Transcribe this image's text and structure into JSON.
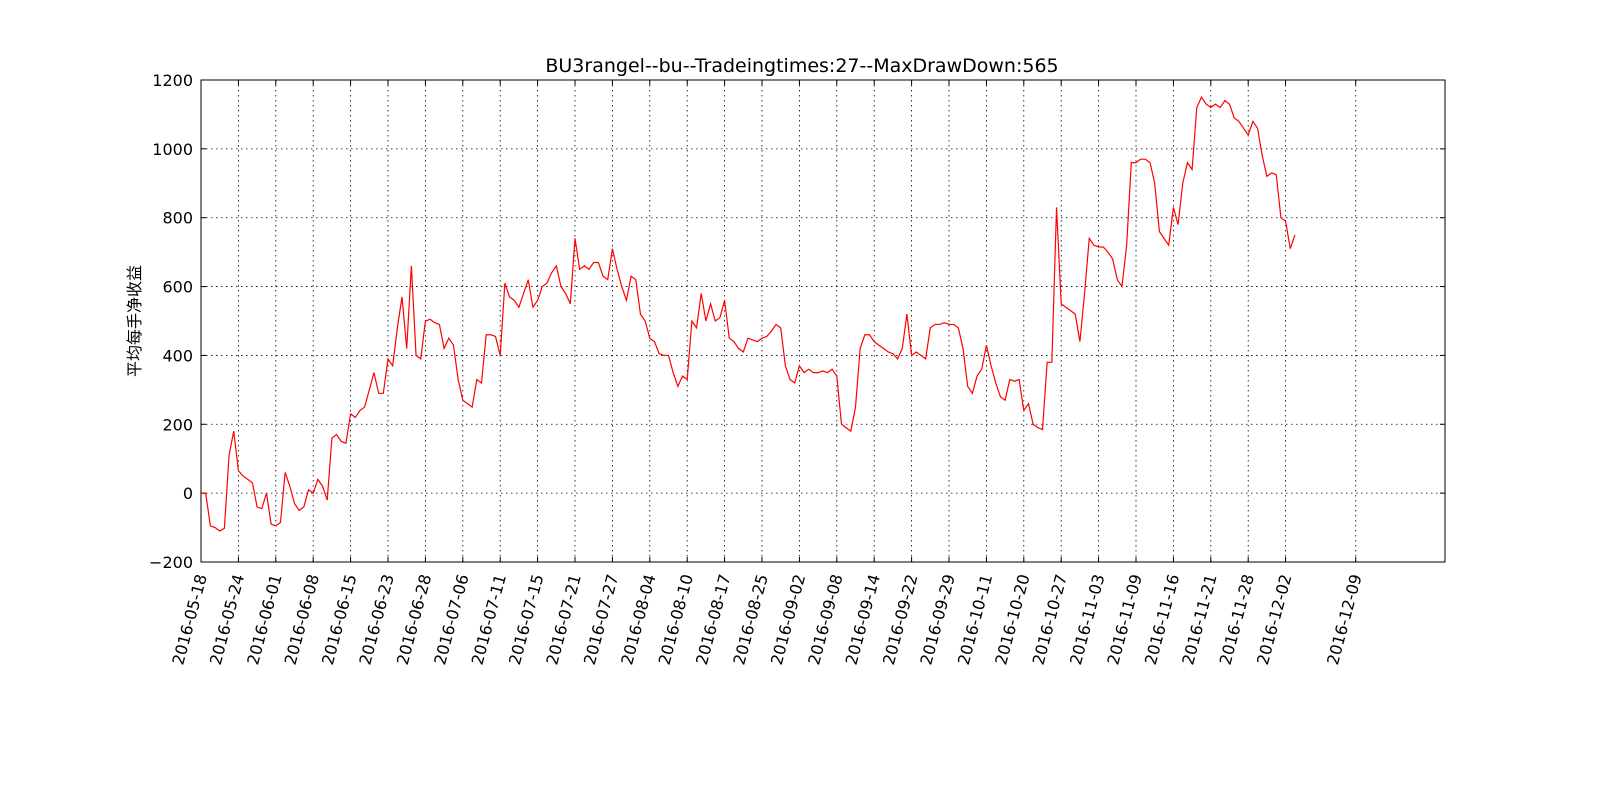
{
  "chart_data": {
    "type": "line",
    "title": "BU3rangel--bu--Tradeingtimes:27--MaxDrawDown:565",
    "xlabel": "",
    "ylabel": "平均每手净收益",
    "ylim": [
      -200,
      1200
    ],
    "yticks": [
      -200,
      0,
      200,
      400,
      600,
      800,
      1000,
      1200
    ],
    "yticklabels": [
      "−200",
      "0",
      "200",
      "400",
      "600",
      "800",
      "1000",
      "1200"
    ],
    "xticks": [
      "2016-05-18",
      "2016-05-24",
      "2016-06-01",
      "2016-06-08",
      "2016-06-15",
      "2016-06-23",
      "2016-06-28",
      "2016-07-06",
      "2016-07-11",
      "2016-07-15",
      "2016-07-21",
      "2016-07-27",
      "2016-08-04",
      "2016-08-10",
      "2016-08-17",
      "2016-08-25",
      "2016-09-02",
      "2016-09-08",
      "2016-09-14",
      "2016-09-22",
      "2016-09-29",
      "2016-10-11",
      "2016-10-20",
      "2016-10-27",
      "2016-11-03",
      "2016-11-09",
      "2016-11-16",
      "2016-11-21",
      "2016-11-28",
      "2016-12-02",
      "2016-12-09"
    ],
    "xtick_index": [
      0,
      8,
      16,
      24,
      32,
      40,
      48,
      56,
      64,
      72,
      80,
      88,
      96,
      104,
      112,
      120,
      128,
      136,
      144,
      152,
      160,
      168,
      176,
      184,
      192,
      200,
      208,
      216,
      224,
      232,
      247
    ],
    "grid": true,
    "legend": "none",
    "series": [
      {
        "color": "#ff0000",
        "values": [
          0,
          0,
          -95,
          -100,
          -110,
          -102,
          110,
          180,
          65,
          50,
          40,
          30,
          -40,
          -45,
          0,
          -90,
          -95,
          -85,
          60,
          20,
          -30,
          -50,
          -40,
          10,
          0,
          40,
          20,
          -20,
          160,
          170,
          150,
          145,
          230,
          220,
          240,
          250,
          300,
          350,
          290,
          290,
          390,
          370,
          480,
          570,
          420,
          660,
          400,
          390,
          500,
          505,
          495,
          490,
          420,
          450,
          430,
          330,
          270,
          260,
          250,
          330,
          320,
          460,
          460,
          455,
          400,
          610,
          570,
          560,
          540,
          580,
          620,
          540,
          560,
          600,
          610,
          640,
          660,
          600,
          580,
          550,
          740,
          650,
          660,
          650,
          670,
          670,
          630,
          620,
          710,
          650,
          600,
          560,
          630,
          620,
          520,
          500,
          450,
          440,
          405,
          400,
          400,
          350,
          310,
          340,
          330,
          500,
          480,
          580,
          500,
          550,
          500,
          510,
          560,
          450,
          440,
          420,
          410,
          450,
          445,
          440,
          450,
          455,
          470,
          490,
          480,
          370,
          330,
          320,
          370,
          350,
          360,
          350,
          350,
          355,
          350,
          360,
          340,
          200,
          190,
          180,
          250,
          420,
          460,
          460,
          440,
          430,
          420,
          410,
          405,
          390,
          420,
          520,
          400,
          410,
          400,
          390,
          480,
          490,
          490,
          495,
          490,
          490,
          480,
          420,
          310,
          290,
          340,
          360,
          430,
          370,
          320,
          280,
          270,
          330,
          325,
          330,
          240,
          260,
          200,
          190,
          185,
          380,
          380,
          830,
          550,
          540,
          530,
          520,
          440,
          580,
          740,
          720,
          715,
          715,
          700,
          680,
          620,
          600,
          720,
          960,
          960,
          970,
          970,
          960,
          900,
          760,
          740,
          720,
          830,
          780,
          900,
          960,
          940,
          1120,
          1150,
          1130,
          1120,
          1130,
          1120,
          1140,
          1130,
          1090,
          1080,
          1060,
          1040,
          1080,
          1060,
          980,
          920,
          930,
          925,
          800,
          790,
          710,
          750
        ]
      }
    ]
  }
}
